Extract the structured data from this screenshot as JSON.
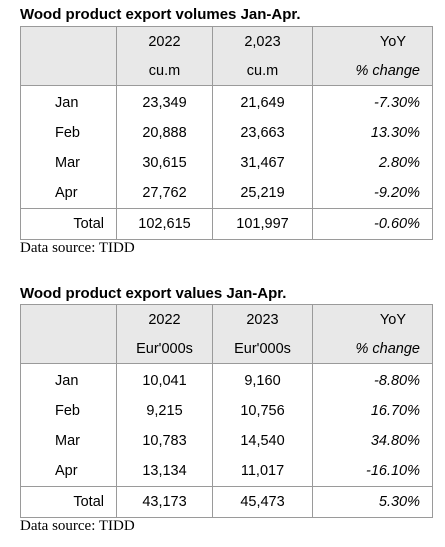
{
  "table1": {
    "title": "Wood product export volumes Jan-Apr.",
    "col1": "2022",
    "col2": "2,023",
    "col3": "YoY",
    "unit1": "cu.m",
    "unit2": "cu.m",
    "unit3": "% change",
    "rows": [
      {
        "label": "Jan",
        "v1": "23,349",
        "v2": "21,649",
        "pct": "-7.30%"
      },
      {
        "label": "Feb",
        "v1": "20,888",
        "v2": "23,663",
        "pct": "13.30%"
      },
      {
        "label": "Mar",
        "v1": "30,615",
        "v2": "31,467",
        "pct": "2.80%"
      },
      {
        "label": "Apr",
        "v1": "27,762",
        "v2": "25,219",
        "pct": "-9.20%"
      }
    ],
    "total": {
      "label": "Total",
      "v1": "102,615",
      "v2": "101,997",
      "pct": "-0.60%"
    },
    "source": "Data source: TIDD"
  },
  "table2": {
    "title": "Wood product export values Jan-Apr.",
    "col1": "2022",
    "col2": "2023",
    "col3": "YoY",
    "unit1": "Eur'000s",
    "unit2": "Eur'000s",
    "unit3": "% change",
    "rows": [
      {
        "label": "Jan",
        "v1": "10,041",
        "v2": "9,160",
        "pct": "-8.80%"
      },
      {
        "label": "Feb",
        "v1": "9,215",
        "v2": "10,756",
        "pct": "16.70%"
      },
      {
        "label": "Mar",
        "v1": "10,783",
        "v2": "14,540",
        "pct": "34.80%"
      },
      {
        "label": "Apr",
        "v1": "13,134",
        "v2": "11,017",
        "pct": "-16.10%"
      }
    ],
    "total": {
      "label": "Total",
      "v1": "43,173",
      "v2": "45,473",
      "pct": "5.30%"
    },
    "source": "Data source: TIDD"
  }
}
